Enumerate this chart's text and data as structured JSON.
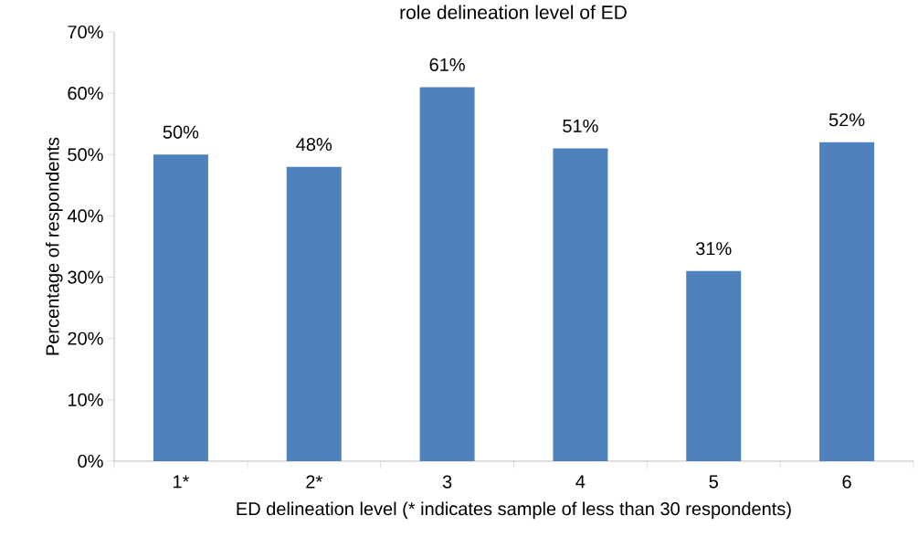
{
  "chart_data": {
    "type": "bar",
    "title": "role delineation level of ED",
    "xlabel": "ED delineation level (* indicates sample of less than 30 respondents)",
    "ylabel": "Percentage of respondents",
    "categories": [
      "1*",
      "2*",
      "3",
      "4",
      "5",
      "6"
    ],
    "values": [
      50,
      48,
      61,
      51,
      31,
      52
    ],
    "value_labels": [
      "50%",
      "48%",
      "61%",
      "51%",
      "31%",
      "52%"
    ],
    "color": "#4f81bd",
    "ylim": [
      0,
      70
    ],
    "yticks": [
      {
        "value": 0,
        "label": "0%"
      },
      {
        "value": 10,
        "label": "10%"
      },
      {
        "value": 20,
        "label": "20%"
      },
      {
        "value": 30,
        "label": "30%"
      },
      {
        "value": 40,
        "label": "40%"
      },
      {
        "value": 50,
        "label": "50%"
      },
      {
        "value": 60,
        "label": "60%"
      },
      {
        "value": 70,
        "label": "70%"
      }
    ],
    "grid": false
  }
}
